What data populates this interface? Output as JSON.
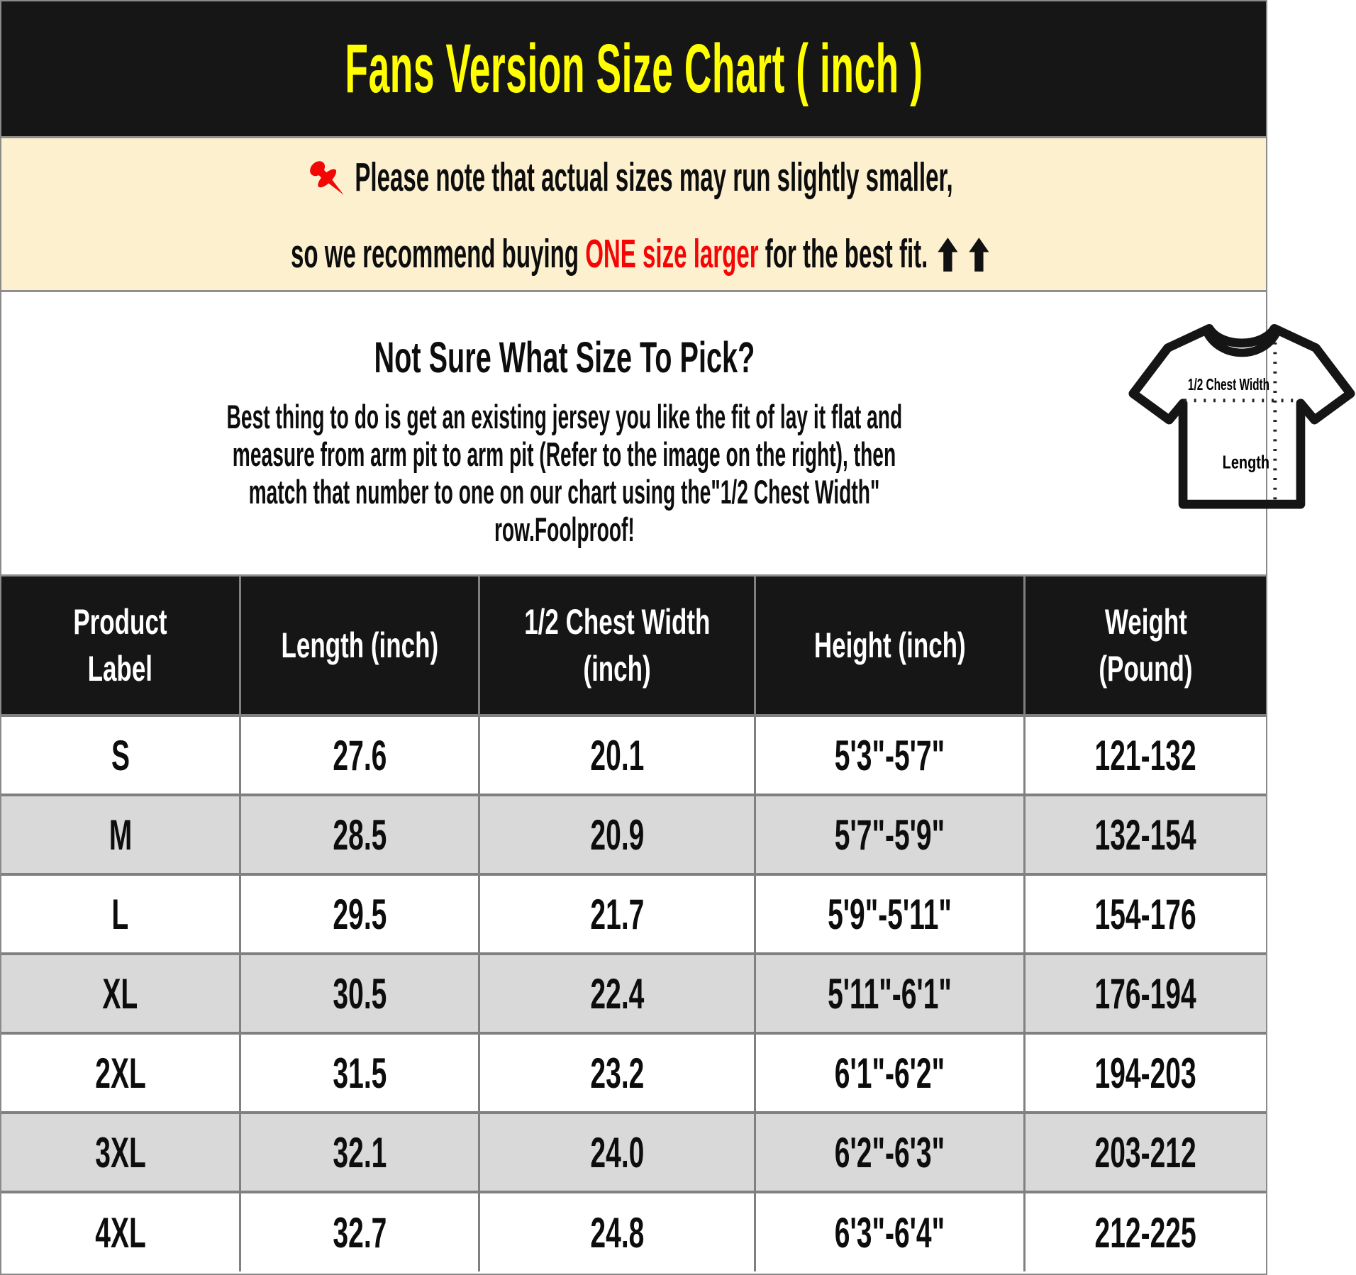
{
  "title_bar": {
    "title": "Fans Version Size Chart ( inch )"
  },
  "notice": {
    "line1": "Please note that actual sizes may run slightly smaller,",
    "line2_before": "so we recommend buying ",
    "line2_highlight": "ONE size larger",
    "line2_after": " for the best fit.",
    "pushpin_icon": "red-pushpin",
    "arrow_icons": "two-black-up-arrows"
  },
  "guide": {
    "heading": "Not Sure What Size To Pick?",
    "body_lines": [
      "Best thing to do is get an existing jersey you like the fit of lay it flat and",
      "measure from arm pit to arm pit (Refer to the image on the right), then",
      "match that number to one on our chart using the\"1/2 Chest Width\"",
      "row.Foolproof!"
    ],
    "diagram": {
      "chest_label": "1/2 Chest Width",
      "length_label": "Length"
    }
  },
  "size_table": {
    "columns": [
      [
        "Product",
        "Label"
      ],
      [
        "Length (inch)"
      ],
      [
        "1/2 Chest Width",
        "(inch)"
      ],
      [
        "Height (inch)"
      ],
      [
        "Weight",
        "(Pound)"
      ]
    ],
    "col_widths_pct": [
      18.9,
      18.9,
      21.8,
      21.3,
      19.1
    ],
    "rows": [
      [
        "S",
        "27.6",
        "20.1",
        "5'3\"-5'7\"",
        "121-132"
      ],
      [
        "M",
        "28.5",
        "20.9",
        "5'7\"-5'9\"",
        "132-154"
      ],
      [
        "L",
        "29.5",
        "21.7",
        "5'9\"-5'11\"",
        "154-176"
      ],
      [
        "XL",
        "30.5",
        "22.4",
        "5'11\"-6'1\"",
        "176-194"
      ],
      [
        "2XL",
        "31.5",
        "23.2",
        "6'1\"-6'2\"",
        "194-203"
      ],
      [
        "3XL",
        "32.1",
        "24.0",
        "6'2\"-6'3\"",
        "203-212"
      ],
      [
        "4XL",
        "32.7",
        "24.8",
        "6'3\"-6'4\"",
        "212-225"
      ]
    ]
  },
  "palette": {
    "header_bg": "#161616",
    "title_color": "#ffff00",
    "notice_bg": "#fcf0cf",
    "highlight_red": "#f50606",
    "row_alt_bg": "#d9d9d9",
    "border_gray": "#808080",
    "text_black": "#0d0d0d"
  }
}
